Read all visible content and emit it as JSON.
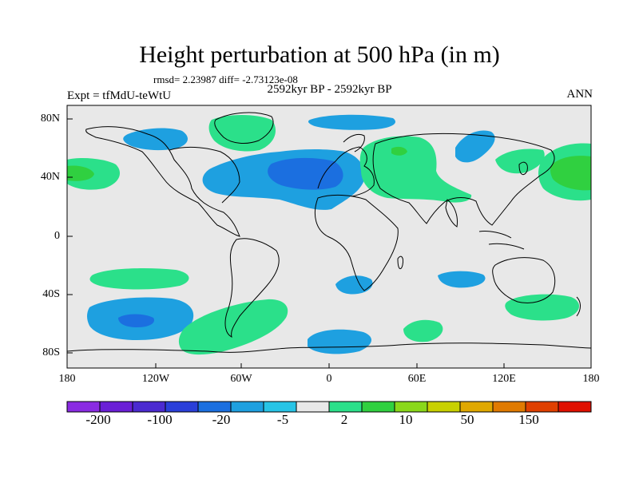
{
  "title": "Height perturbation at 500 hPa (in m)",
  "stats": "rmsd= 2.23987 diff= -2.73123e-08",
  "experiment": "Expt = tfMdU-teWtU",
  "period": "2592kyr BP - 2592kyr BP",
  "season": "ANN",
  "lat_labels": [
    "80N",
    "40N",
    "0",
    "40S",
    "80S"
  ],
  "lon_labels": [
    "180",
    "120W",
    "60W",
    "0",
    "60E",
    "120E",
    "180"
  ],
  "colorbar": {
    "colors": [
      "#8a2be2",
      "#6a1fd6",
      "#4b2ad0",
      "#2a3fd9",
      "#1b6fe0",
      "#1ea0e0",
      "#27c4e6",
      "#e8e8e8",
      "#2be08a",
      "#30d040",
      "#8ad81a",
      "#c8d000",
      "#e0a800",
      "#e07a00",
      "#e04000",
      "#e01000"
    ],
    "labels": [
      "-200",
      "-100",
      "-20",
      "-5",
      "2",
      "10",
      "50",
      "150"
    ]
  },
  "colors": {
    "background": "#e8e8e8",
    "neg_light": "#1ea0e0",
    "neg_mid": "#1b6fe0",
    "pos_light": "#2be08a",
    "pos_mid": "#30d040",
    "pos_strong": "#8ad81a"
  }
}
